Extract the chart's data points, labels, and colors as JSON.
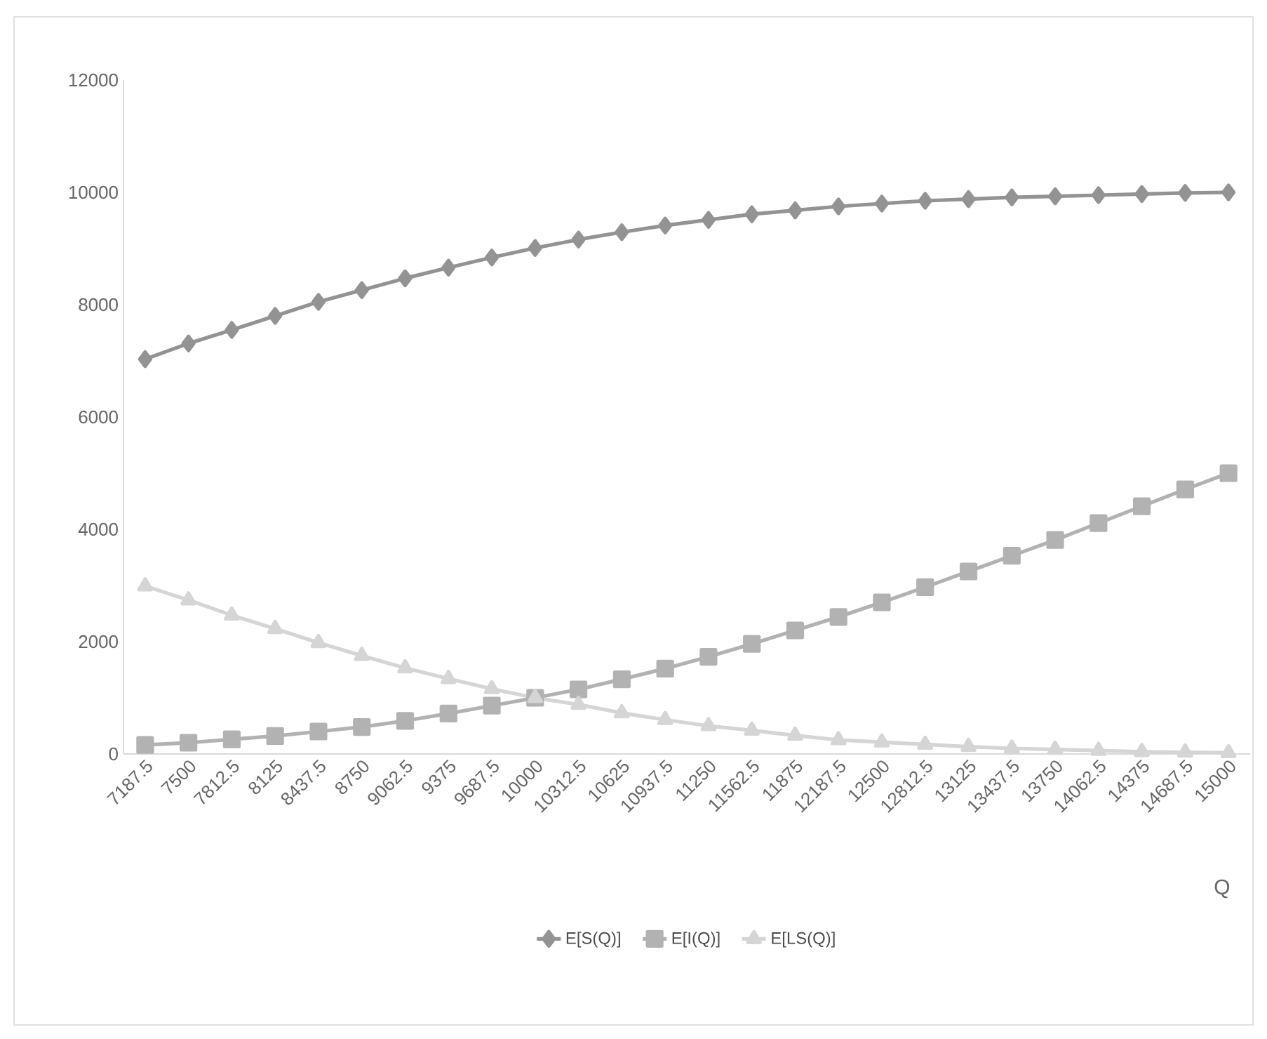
{
  "chart_data": {
    "type": "line",
    "xlabel": "Q",
    "categories": [
      "7187.5",
      "7500",
      "7812.5",
      "8125",
      "8437.5",
      "8750",
      "9062.5",
      "9375",
      "9687.5",
      "10000",
      "10312.5",
      "10625",
      "10937.5",
      "11250",
      "11562.5",
      "11875",
      "12187.5",
      "12500",
      "12812.5",
      "13125",
      "13437.5",
      "13750",
      "14062.5",
      "14375",
      "14687.5",
      "15000"
    ],
    "series": [
      {
        "name": "E[S(Q)]",
        "color": "#939393",
        "marker": "diamond",
        "values": [
          7030,
          7310,
          7550,
          7800,
          8050,
          8260,
          8470,
          8660,
          8840,
          9010,
          9160,
          9290,
          9410,
          9510,
          9610,
          9680,
          9750,
          9800,
          9850,
          9880,
          9910,
          9930,
          9950,
          9970,
          9990,
          10000
        ]
      },
      {
        "name": "E[I(Q)]",
        "color": "#b2b2b2",
        "marker": "square",
        "values": [
          160,
          200,
          260,
          320,
          400,
          480,
          590,
          720,
          860,
          1000,
          1150,
          1330,
          1520,
          1730,
          1960,
          2200,
          2440,
          2700,
          2970,
          3250,
          3530,
          3810,
          4110,
          4410,
          4710,
          5000
        ]
      },
      {
        "name": "E[LS(Q)]",
        "color": "#d5d5d5",
        "marker": "triangle",
        "values": [
          2990,
          2740,
          2470,
          2230,
          1980,
          1750,
          1530,
          1340,
          1160,
          1000,
          880,
          730,
          610,
          500,
          420,
          330,
          250,
          210,
          170,
          130,
          100,
          80,
          60,
          40,
          30,
          20
        ]
      }
    ],
    "ylim": [
      0,
      12000
    ],
    "yticks": [
      0,
      2000,
      4000,
      6000,
      8000,
      10000,
      12000
    ],
    "grid": false,
    "legend": "bottom",
    "line_style": "solid"
  }
}
